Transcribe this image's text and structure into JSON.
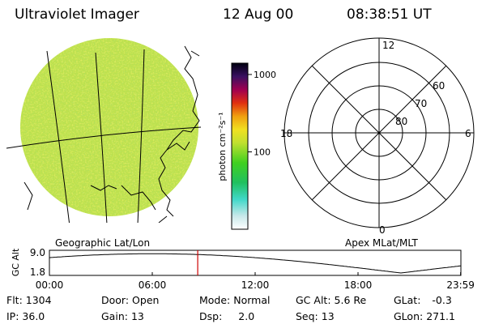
{
  "header": {
    "instrument": "Ultraviolet Imager",
    "date": "12 Aug 00",
    "time": "08:38:51 UT"
  },
  "colorbar": {
    "unit_label": "photon cm⁻²s⁻¹",
    "ticks": [
      {
        "label": "1000",
        "value": 1000
      },
      {
        "label": "100",
        "value": 100
      }
    ]
  },
  "image_panel": {
    "caption": "Geographic Lat/Lon"
  },
  "polar_panel": {
    "caption": "Apex MLat/MLT",
    "mlt_labels": {
      "top": "12",
      "right": "6",
      "bottom": "0",
      "left": "18"
    },
    "mlat_labels": [
      "60",
      "70",
      "80"
    ]
  },
  "altitude_plot": {
    "ylabel": "GC Alt",
    "y_ticks": [
      "9.0",
      "1.8"
    ],
    "x_ticks": [
      "00:00",
      "06:00",
      "12:00",
      "18:00",
      "23:59"
    ],
    "current_time_marker_hours": 8.65
  },
  "status": {
    "flt": {
      "label": "Flt:",
      "value": "1304"
    },
    "ip": {
      "label": "IP:",
      "value": "36.0"
    },
    "door": {
      "label": "Door:",
      "value": "Open"
    },
    "gain": {
      "label": "Gain:",
      "value": "13"
    },
    "mode": {
      "label": "Mode:",
      "value": "Normal"
    },
    "dsp": {
      "label": "Dsp:",
      "value": "2.0"
    },
    "gcalt": {
      "label": "GC Alt:",
      "value": "5.6 Re"
    },
    "seq": {
      "label": "Seq:",
      "value": "13"
    },
    "glat": {
      "label": "GLat:",
      "value": "-0.3"
    },
    "glon": {
      "label": "GLon:",
      "value": "271.1"
    }
  },
  "colors": {
    "marker": "#cc0000",
    "image_base": "#b8e04a"
  }
}
